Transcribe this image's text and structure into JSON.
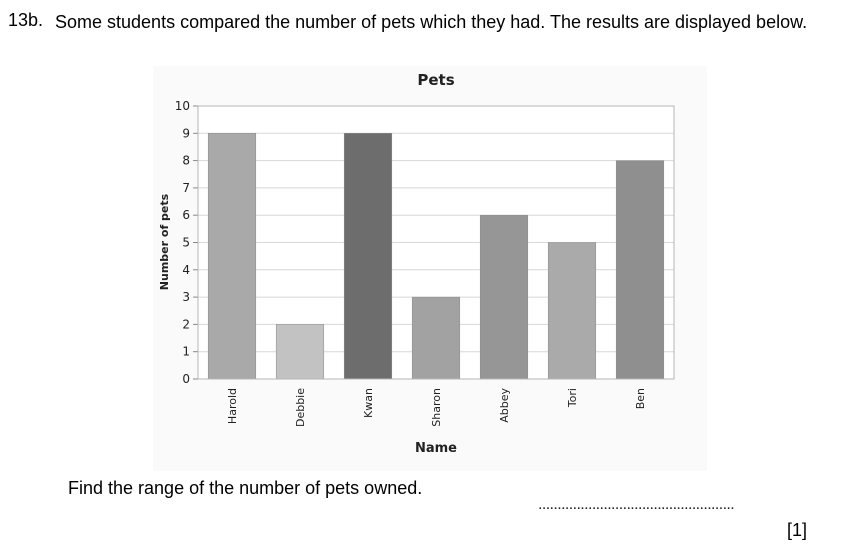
{
  "question": {
    "number": "13b.",
    "text": "Some students compared the number of pets which they had. The results are displayed below."
  },
  "chart_data": {
    "type": "bar",
    "title": "Pets",
    "xlabel": "Name",
    "ylabel": "Number of pets",
    "ylim": [
      0,
      10
    ],
    "yticks": [
      0,
      1,
      2,
      3,
      4,
      5,
      6,
      7,
      8,
      9,
      10
    ],
    "grid": true,
    "categories": [
      "Harold",
      "Debbie",
      "Kwan",
      "Sharon",
      "Abbey",
      "Tori",
      "Ben"
    ],
    "values": [
      9,
      2,
      9,
      3,
      6,
      5,
      8
    ],
    "bar_colors": [
      "#a9a9a9",
      "#c2c2c2",
      "#6d6d6d",
      "#a2a2a2",
      "#969696",
      "#aaaaaa",
      "#8f8f8f"
    ]
  },
  "instruction": "Find the range of the number of pets owned.",
  "answer_line": "...................................................",
  "marks": "[1]"
}
